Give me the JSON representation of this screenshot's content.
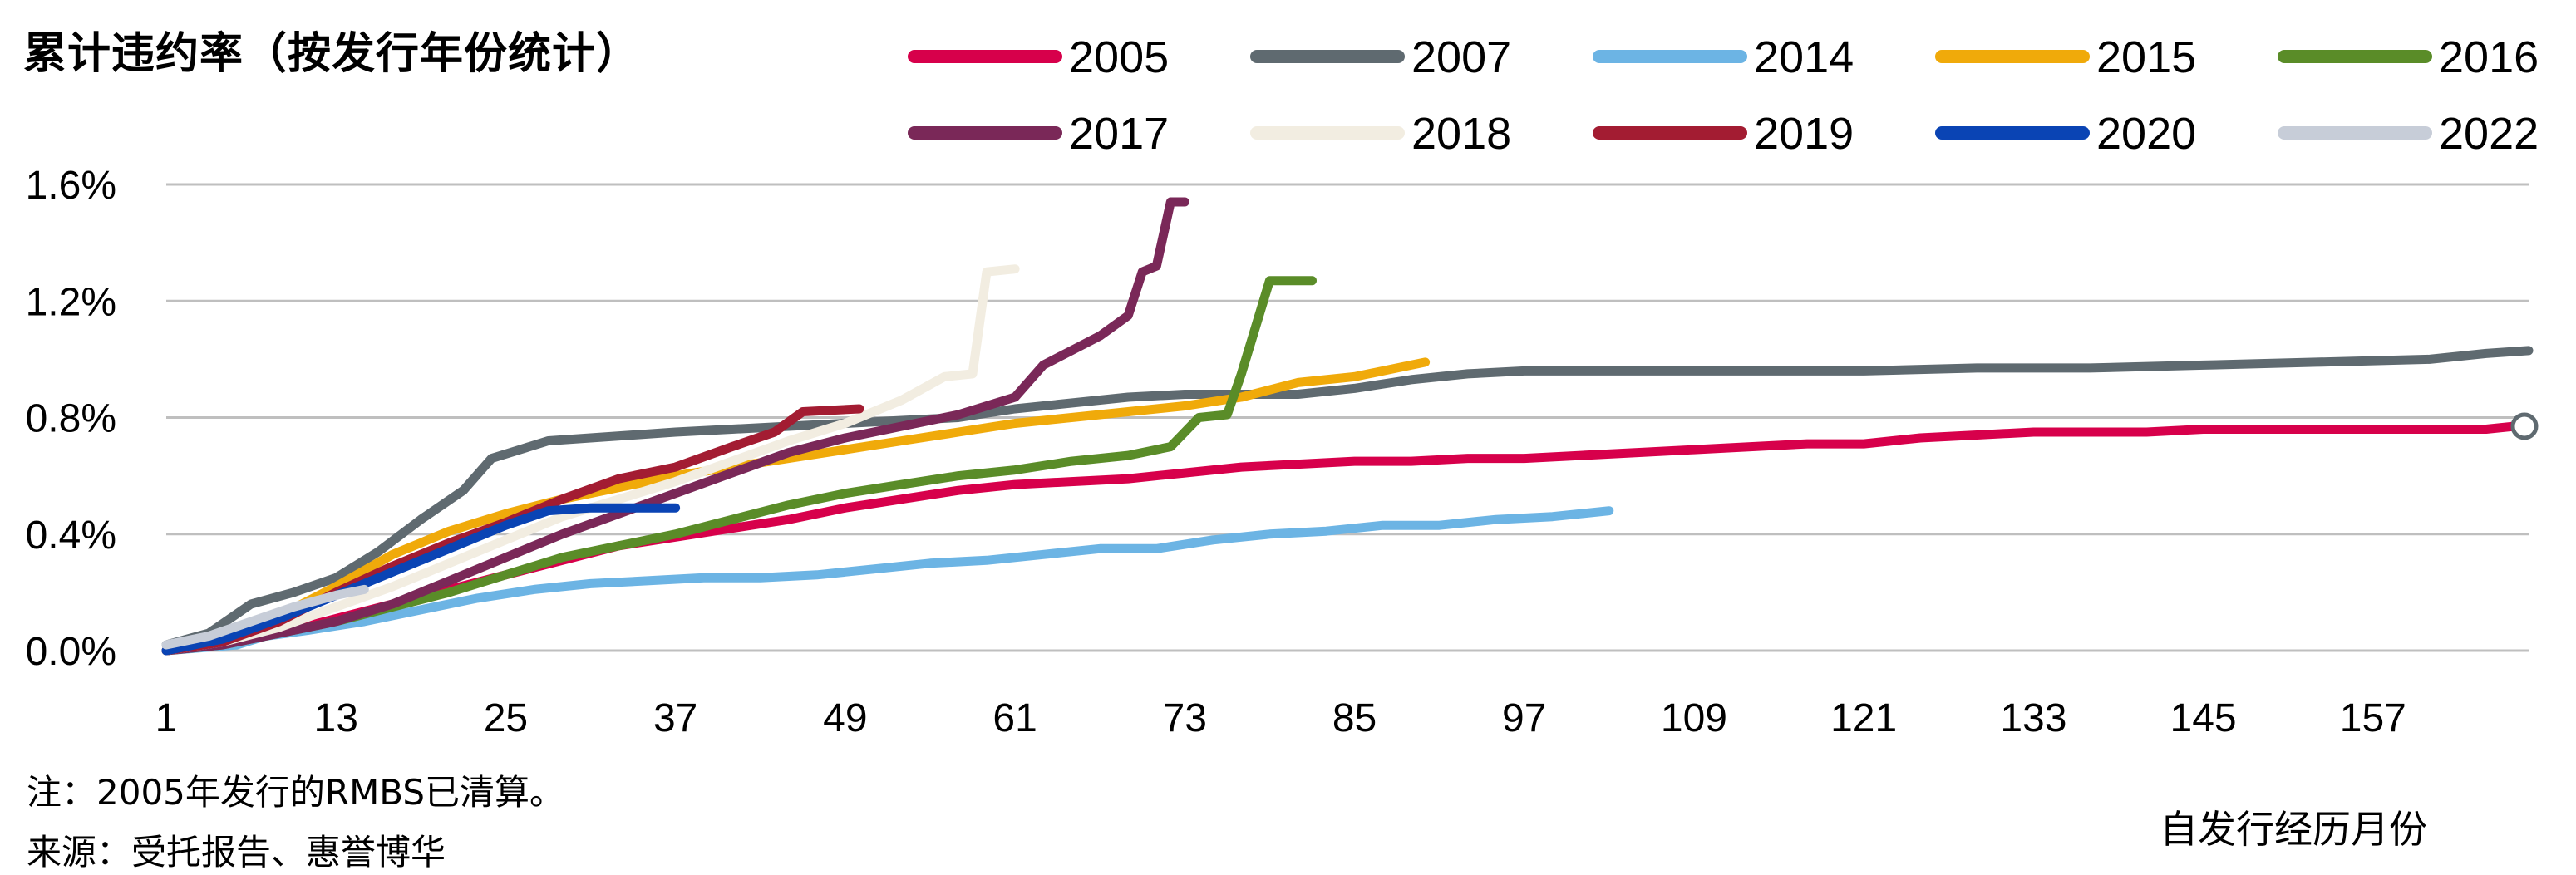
{
  "chart_data": {
    "type": "line",
    "title": "累计违约率（按发行年份统计）",
    "xlabel": "自发行经历月份",
    "ylabel": "",
    "x_ticks": [
      1,
      13,
      25,
      37,
      49,
      61,
      73,
      85,
      97,
      109,
      121,
      133,
      145,
      157
    ],
    "y_ticks": [
      "0.0%",
      "0.4%",
      "0.8%",
      "1.2%",
      "1.6%"
    ],
    "y_tick_values": [
      0,
      0.4,
      0.8,
      1.2,
      1.6
    ],
    "xlim": [
      1,
      168
    ],
    "ylim": [
      0,
      1.6
    ],
    "grid": true,
    "legend": "top",
    "series": [
      {
        "name": "2005",
        "color": "#D7004B",
        "points": [
          [
            1,
            0.0
          ],
          [
            5,
            0.02
          ],
          [
            9,
            0.06
          ],
          [
            13,
            0.11
          ],
          [
            17,
            0.16
          ],
          [
            21,
            0.21
          ],
          [
            25,
            0.26
          ],
          [
            29,
            0.31
          ],
          [
            33,
            0.36
          ],
          [
            37,
            0.39
          ],
          [
            41,
            0.42
          ],
          [
            45,
            0.45
          ],
          [
            49,
            0.49
          ],
          [
            53,
            0.52
          ],
          [
            57,
            0.55
          ],
          [
            61,
            0.57
          ],
          [
            65,
            0.58
          ],
          [
            69,
            0.59
          ],
          [
            73,
            0.61
          ],
          [
            77,
            0.63
          ],
          [
            81,
            0.64
          ],
          [
            85,
            0.65
          ],
          [
            89,
            0.65
          ],
          [
            93,
            0.66
          ],
          [
            97,
            0.66
          ],
          [
            101,
            0.67
          ],
          [
            105,
            0.68
          ],
          [
            109,
            0.69
          ],
          [
            113,
            0.7
          ],
          [
            117,
            0.71
          ],
          [
            121,
            0.71
          ],
          [
            125,
            0.73
          ],
          [
            129,
            0.74
          ],
          [
            133,
            0.75
          ],
          [
            137,
            0.75
          ],
          [
            141,
            0.75
          ],
          [
            145,
            0.76
          ],
          [
            149,
            0.76
          ],
          [
            153,
            0.76
          ],
          [
            157,
            0.76
          ],
          [
            161,
            0.76
          ],
          [
            165,
            0.76
          ],
          [
            167,
            0.77
          ]
        ]
      },
      {
        "name": "2007",
        "color": "#5F6A70",
        "points": [
          [
            1,
            0.02
          ],
          [
            4,
            0.06
          ],
          [
            7,
            0.16
          ],
          [
            10,
            0.2
          ],
          [
            13,
            0.25
          ],
          [
            16,
            0.34
          ],
          [
            19,
            0.45
          ],
          [
            22,
            0.55
          ],
          [
            24,
            0.66
          ],
          [
            26,
            0.69
          ],
          [
            28,
            0.72
          ],
          [
            31,
            0.73
          ],
          [
            34,
            0.74
          ],
          [
            37,
            0.75
          ],
          [
            41,
            0.76
          ],
          [
            45,
            0.77
          ],
          [
            49,
            0.78
          ],
          [
            53,
            0.79
          ],
          [
            57,
            0.8
          ],
          [
            61,
            0.83
          ],
          [
            65,
            0.85
          ],
          [
            69,
            0.87
          ],
          [
            73,
            0.88
          ],
          [
            77,
            0.88
          ],
          [
            81,
            0.88
          ],
          [
            85,
            0.9
          ],
          [
            89,
            0.93
          ],
          [
            93,
            0.95
          ],
          [
            97,
            0.96
          ],
          [
            105,
            0.96
          ],
          [
            113,
            0.96
          ],
          [
            121,
            0.96
          ],
          [
            129,
            0.97
          ],
          [
            137,
            0.97
          ],
          [
            145,
            0.98
          ],
          [
            153,
            0.99
          ],
          [
            161,
            1.0
          ],
          [
            165,
            1.02
          ],
          [
            168,
            1.03
          ]
        ]
      },
      {
        "name": "2014",
        "color": "#6CB4E4",
        "points": [
          [
            1,
            0.0
          ],
          [
            6,
            0.02
          ],
          [
            8,
            0.05
          ],
          [
            11,
            0.07
          ],
          [
            15,
            0.1
          ],
          [
            19,
            0.14
          ],
          [
            23,
            0.18
          ],
          [
            27,
            0.21
          ],
          [
            31,
            0.23
          ],
          [
            35,
            0.24
          ],
          [
            39,
            0.25
          ],
          [
            43,
            0.25
          ],
          [
            47,
            0.26
          ],
          [
            51,
            0.28
          ],
          [
            55,
            0.3
          ],
          [
            59,
            0.31
          ],
          [
            63,
            0.33
          ],
          [
            67,
            0.35
          ],
          [
            71,
            0.35
          ],
          [
            75,
            0.38
          ],
          [
            79,
            0.4
          ],
          [
            83,
            0.41
          ],
          [
            87,
            0.43
          ],
          [
            91,
            0.43
          ],
          [
            95,
            0.45
          ],
          [
            99,
            0.46
          ],
          [
            103,
            0.48
          ]
        ]
      },
      {
        "name": "2015",
        "color": "#F0AA0A",
        "points": [
          [
            1,
            0.0
          ],
          [
            5,
            0.04
          ],
          [
            9,
            0.12
          ],
          [
            13,
            0.22
          ],
          [
            17,
            0.33
          ],
          [
            21,
            0.41
          ],
          [
            25,
            0.47
          ],
          [
            29,
            0.52
          ],
          [
            33,
            0.56
          ],
          [
            37,
            0.6
          ],
          [
            41,
            0.63
          ],
          [
            45,
            0.66
          ],
          [
            49,
            0.69
          ],
          [
            53,
            0.72
          ],
          [
            57,
            0.75
          ],
          [
            61,
            0.78
          ],
          [
            65,
            0.8
          ],
          [
            69,
            0.82
          ],
          [
            73,
            0.84
          ],
          [
            77,
            0.87
          ],
          [
            81,
            0.92
          ],
          [
            85,
            0.94
          ],
          [
            88,
            0.97
          ],
          [
            90,
            0.99
          ]
        ]
      },
      {
        "name": "2016",
        "color": "#5A8C28",
        "points": [
          [
            1,
            0.0
          ],
          [
            5,
            0.02
          ],
          [
            9,
            0.06
          ],
          [
            13,
            0.1
          ],
          [
            17,
            0.15
          ],
          [
            21,
            0.2
          ],
          [
            25,
            0.26
          ],
          [
            29,
            0.32
          ],
          [
            33,
            0.36
          ],
          [
            37,
            0.4
          ],
          [
            41,
            0.45
          ],
          [
            45,
            0.5
          ],
          [
            49,
            0.54
          ],
          [
            53,
            0.57
          ],
          [
            57,
            0.6
          ],
          [
            61,
            0.62
          ],
          [
            65,
            0.65
          ],
          [
            69,
            0.67
          ],
          [
            72,
            0.7
          ],
          [
            74,
            0.8
          ],
          [
            76,
            0.81
          ],
          [
            77,
            0.95
          ],
          [
            79,
            1.27
          ],
          [
            81,
            1.27
          ],
          [
            82,
            1.27
          ]
        ]
      },
      {
        "name": "2017",
        "color": "#7A2858",
        "points": [
          [
            1,
            0.0
          ],
          [
            5,
            0.02
          ],
          [
            9,
            0.06
          ],
          [
            13,
            0.1
          ],
          [
            17,
            0.16
          ],
          [
            21,
            0.24
          ],
          [
            25,
            0.32
          ],
          [
            29,
            0.4
          ],
          [
            33,
            0.47
          ],
          [
            37,
            0.54
          ],
          [
            41,
            0.61
          ],
          [
            45,
            0.68
          ],
          [
            49,
            0.73
          ],
          [
            53,
            0.77
          ],
          [
            57,
            0.81
          ],
          [
            61,
            0.87
          ],
          [
            63,
            0.98
          ],
          [
            65,
            1.03
          ],
          [
            67,
            1.08
          ],
          [
            69,
            1.15
          ],
          [
            70,
            1.3
          ],
          [
            71,
            1.32
          ],
          [
            72,
            1.54
          ],
          [
            73,
            1.54
          ]
        ]
      },
      {
        "name": "2018",
        "color": "#F2EDE1",
        "points": [
          [
            1,
            0.0
          ],
          [
            5,
            0.03
          ],
          [
            9,
            0.08
          ],
          [
            13,
            0.15
          ],
          [
            17,
            0.22
          ],
          [
            21,
            0.3
          ],
          [
            25,
            0.38
          ],
          [
            29,
            0.46
          ],
          [
            33,
            0.52
          ],
          [
            37,
            0.58
          ],
          [
            41,
            0.65
          ],
          [
            45,
            0.72
          ],
          [
            49,
            0.78
          ],
          [
            53,
            0.86
          ],
          [
            56,
            0.94
          ],
          [
            58,
            0.95
          ],
          [
            59,
            1.3
          ],
          [
            61,
            1.31
          ]
        ]
      },
      {
        "name": "2019",
        "color": "#A31C32",
        "points": [
          [
            1,
            0.0
          ],
          [
            5,
            0.03
          ],
          [
            9,
            0.1
          ],
          [
            13,
            0.2
          ],
          [
            17,
            0.29
          ],
          [
            21,
            0.37
          ],
          [
            25,
            0.44
          ],
          [
            29,
            0.52
          ],
          [
            33,
            0.59
          ],
          [
            37,
            0.63
          ],
          [
            41,
            0.7
          ],
          [
            44,
            0.75
          ],
          [
            46,
            0.82
          ],
          [
            50,
            0.83
          ]
        ]
      },
      {
        "name": "2020",
        "color": "#0A44B4",
        "points": [
          [
            1,
            0.0
          ],
          [
            5,
            0.04
          ],
          [
            9,
            0.11
          ],
          [
            13,
            0.19
          ],
          [
            17,
            0.27
          ],
          [
            21,
            0.35
          ],
          [
            25,
            0.43
          ],
          [
            28,
            0.48
          ],
          [
            31,
            0.49
          ],
          [
            34,
            0.49
          ],
          [
            37,
            0.49
          ]
        ]
      },
      {
        "name": "2022",
        "color": "#C7CDD8",
        "points": [
          [
            1,
            0.02
          ],
          [
            4,
            0.05
          ],
          [
            7,
            0.1
          ],
          [
            10,
            0.15
          ],
          [
            13,
            0.19
          ],
          [
            15,
            0.21
          ]
        ]
      }
    ],
    "legend_entries": [
      "2005",
      "2007",
      "2014",
      "2015",
      "2016",
      "2017",
      "2018",
      "2019",
      "2020",
      "2022"
    ]
  },
  "footnote": "注：2005年发行的RMBS已清算。",
  "source": "来源：受托报告、惠誉博华"
}
